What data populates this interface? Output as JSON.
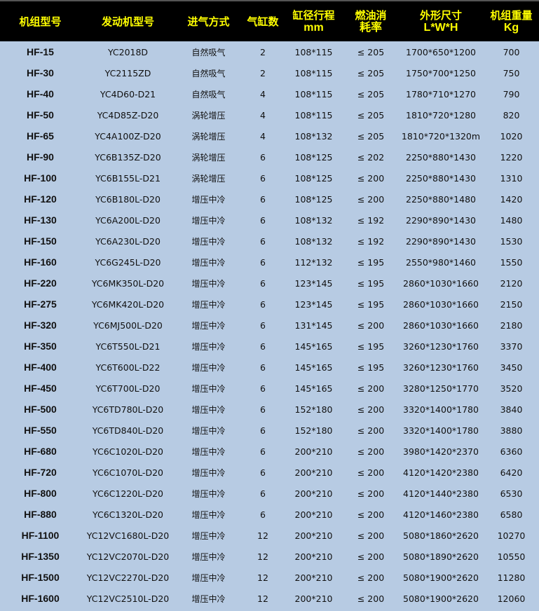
{
  "header": [
    {
      "line1": "机组型号",
      "line2": ""
    },
    {
      "line1": "发动机型号",
      "line2": ""
    },
    {
      "line1": "进气方式",
      "line2": ""
    },
    {
      "line1": "气缸数",
      "line2": ""
    },
    {
      "line1": "缸径行程",
      "line2": "mm"
    },
    {
      "line1": "燃油消",
      "line2": "耗率"
    },
    {
      "line1": "外形尺寸",
      "line2": "L*W*H"
    },
    {
      "line1": "机组重量",
      "line2": "Kg"
    }
  ],
  "rows": [
    [
      "HF-15",
      "YC2018D",
      "自然吸气",
      "2",
      "108*115",
      "≤ 205",
      "1700*650*1200",
      "700"
    ],
    [
      "HF-30",
      "YC2115ZD",
      "自然吸气",
      "2",
      "108*115",
      "≤ 205",
      "1750*700*1250",
      "750"
    ],
    [
      "HF-40",
      "YC4D60-D21",
      "自然吸气",
      "4",
      "108*115",
      "≤ 205",
      "1780*710*1270",
      "790"
    ],
    [
      "HF-50",
      "YC4D85Z-D20",
      "涡轮增压",
      "4",
      "108*115",
      "≤ 205",
      "1810*720*1280",
      "820"
    ],
    [
      "HF-65",
      "YC4A100Z-D20",
      "涡轮增压",
      "4",
      "108*132",
      "≤ 205",
      "1810*720*1320m",
      "1020"
    ],
    [
      "HF-90",
      "YC6B135Z-D20",
      "涡轮增压",
      "6",
      "108*125",
      "≤ 202",
      "2250*880*1430",
      "1220"
    ],
    [
      "HF-100",
      "YC6B155L-D21",
      "涡轮增压",
      "6",
      "108*125",
      "≤ 200",
      "2250*880*1430",
      "1310"
    ],
    [
      "HF-120",
      "YC6B180L-D20",
      "增压中冷",
      "6",
      "108*125",
      "≤ 200",
      "2250*880*1480",
      "1420"
    ],
    [
      "HF-130",
      "YC6A200L-D20",
      "增压中冷",
      "6",
      "108*132",
      "≤ 192",
      "2290*890*1430",
      "1480"
    ],
    [
      "HF-150",
      "YC6A230L-D20",
      "增压中冷",
      "6",
      "108*132",
      "≤ 192",
      "2290*890*1430",
      "1530"
    ],
    [
      "HF-160",
      "YC6G245L-D20",
      "增压中冷",
      "6",
      "112*132",
      "≤ 195",
      "2550*980*1460",
      "1550"
    ],
    [
      "HF-220",
      "YC6MK350L-D20",
      "增压中冷",
      "6",
      "123*145",
      "≤ 195",
      "2860*1030*1660",
      "2120"
    ],
    [
      "HF-275",
      "YC6MK420L-D20",
      "增压中冷",
      "6",
      "123*145",
      "≤ 195",
      "2860*1030*1660",
      "2150"
    ],
    [
      "HF-320",
      "YC6MJ500L-D20",
      "增压中冷",
      "6",
      "131*145",
      "≤ 200",
      "2860*1030*1660",
      "2180"
    ],
    [
      "HF-350",
      "YC6T550L-D21",
      "增压中冷",
      "6",
      "145*165",
      "≤ 195",
      "3260*1230*1760",
      "3370"
    ],
    [
      "HF-400",
      "YC6T600L-D22",
      "增压中冷",
      "6",
      "145*165",
      "≤ 195",
      "3260*1230*1760",
      "3450"
    ],
    [
      "HF-450",
      "YC6T700L-D20",
      "增压中冷",
      "6",
      "145*165",
      "≤ 200",
      "3280*1250*1770",
      "3520"
    ],
    [
      "HF-500",
      "YC6TD780L-D20",
      "增压中冷",
      "6",
      "152*180",
      "≤ 200",
      "3320*1400*1780",
      "3840"
    ],
    [
      "HF-550",
      "YC6TD840L-D20",
      "增压中冷",
      "6",
      "152*180",
      "≤ 200",
      "3320*1400*1780",
      "3880"
    ],
    [
      "HF-680",
      "YC6C1020L-D20",
      "增压中冷",
      "6",
      "200*210",
      "≤ 200",
      "3980*1420*2370",
      "6360"
    ],
    [
      "HF-720",
      "YC6C1070L-D20",
      "增压中冷",
      "6",
      "200*210",
      "≤ 200",
      "4120*1420*2380",
      "6420"
    ],
    [
      "HF-800",
      "YC6C1220L-D20",
      "增压中冷",
      "6",
      "200*210",
      "≤ 200",
      "4120*1440*2380",
      "6530"
    ],
    [
      "HF-880",
      "YC6C1320L-D20",
      "增压中冷",
      "6",
      "200*210",
      "≤ 200",
      "4120*1460*2380",
      "6580"
    ],
    [
      "HF-1100",
      "YC12VC1680L-D20",
      "增压中冷",
      "12",
      "200*210",
      "≤ 200",
      "5080*1860*2620",
      "10270"
    ],
    [
      "HF-1350",
      "YC12VC2070L-D20",
      "增压中冷",
      "12",
      "200*210",
      "≤ 200",
      "5080*1890*2620",
      "10550"
    ],
    [
      "HF-1500",
      "YC12VC2270L-D20",
      "增压中冷",
      "12",
      "200*210",
      "≤ 200",
      "5080*1900*2620",
      "11280"
    ],
    [
      "HF-1600",
      "YC12VC2510L-D20",
      "增压中冷",
      "12",
      "200*210",
      "≤ 200",
      "5080*1900*2620",
      "12060"
    ]
  ],
  "colors": {
    "header_bg": "#000000",
    "header_text": "#ffff00",
    "body_bg": "#b7cbe3"
  }
}
